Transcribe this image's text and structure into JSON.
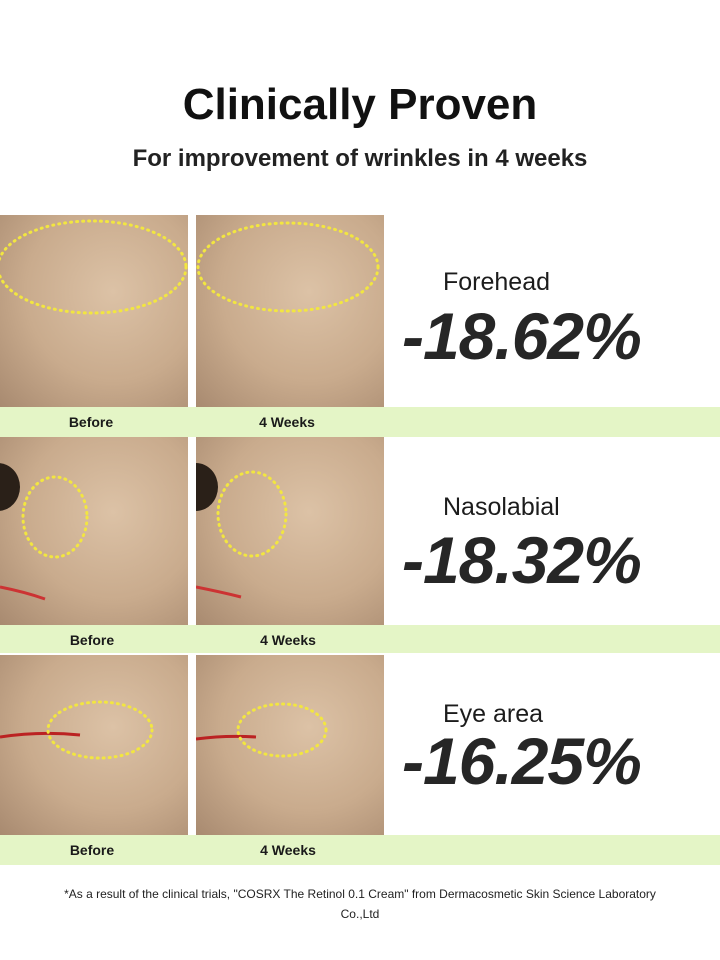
{
  "header": {
    "title": "Clinically Proven",
    "subtitle": "For improvement of wrinkles in 4 weeks"
  },
  "results": [
    {
      "area": "Forehead",
      "value": "-18.62%",
      "before_label": "Before",
      "after_label": "4 Weeks"
    },
    {
      "area": "Nasolabial",
      "value": "-18.32%",
      "before_label": "Before",
      "after_label": "4 Weeks"
    },
    {
      "area": "Eye area",
      "value": "-16.25%",
      "before_label": "Before",
      "after_label": "4 Weeks"
    }
  ],
  "footnote": "*As a result of the clinical trials, \"COSRX The Retinol 0.1 Cream\" from Dermacosmetic Skin Science Laboratory Co.,Ltd",
  "colors": {
    "band": "#e4f5c6",
    "highlight": "#f2e640",
    "text": "#262626"
  }
}
